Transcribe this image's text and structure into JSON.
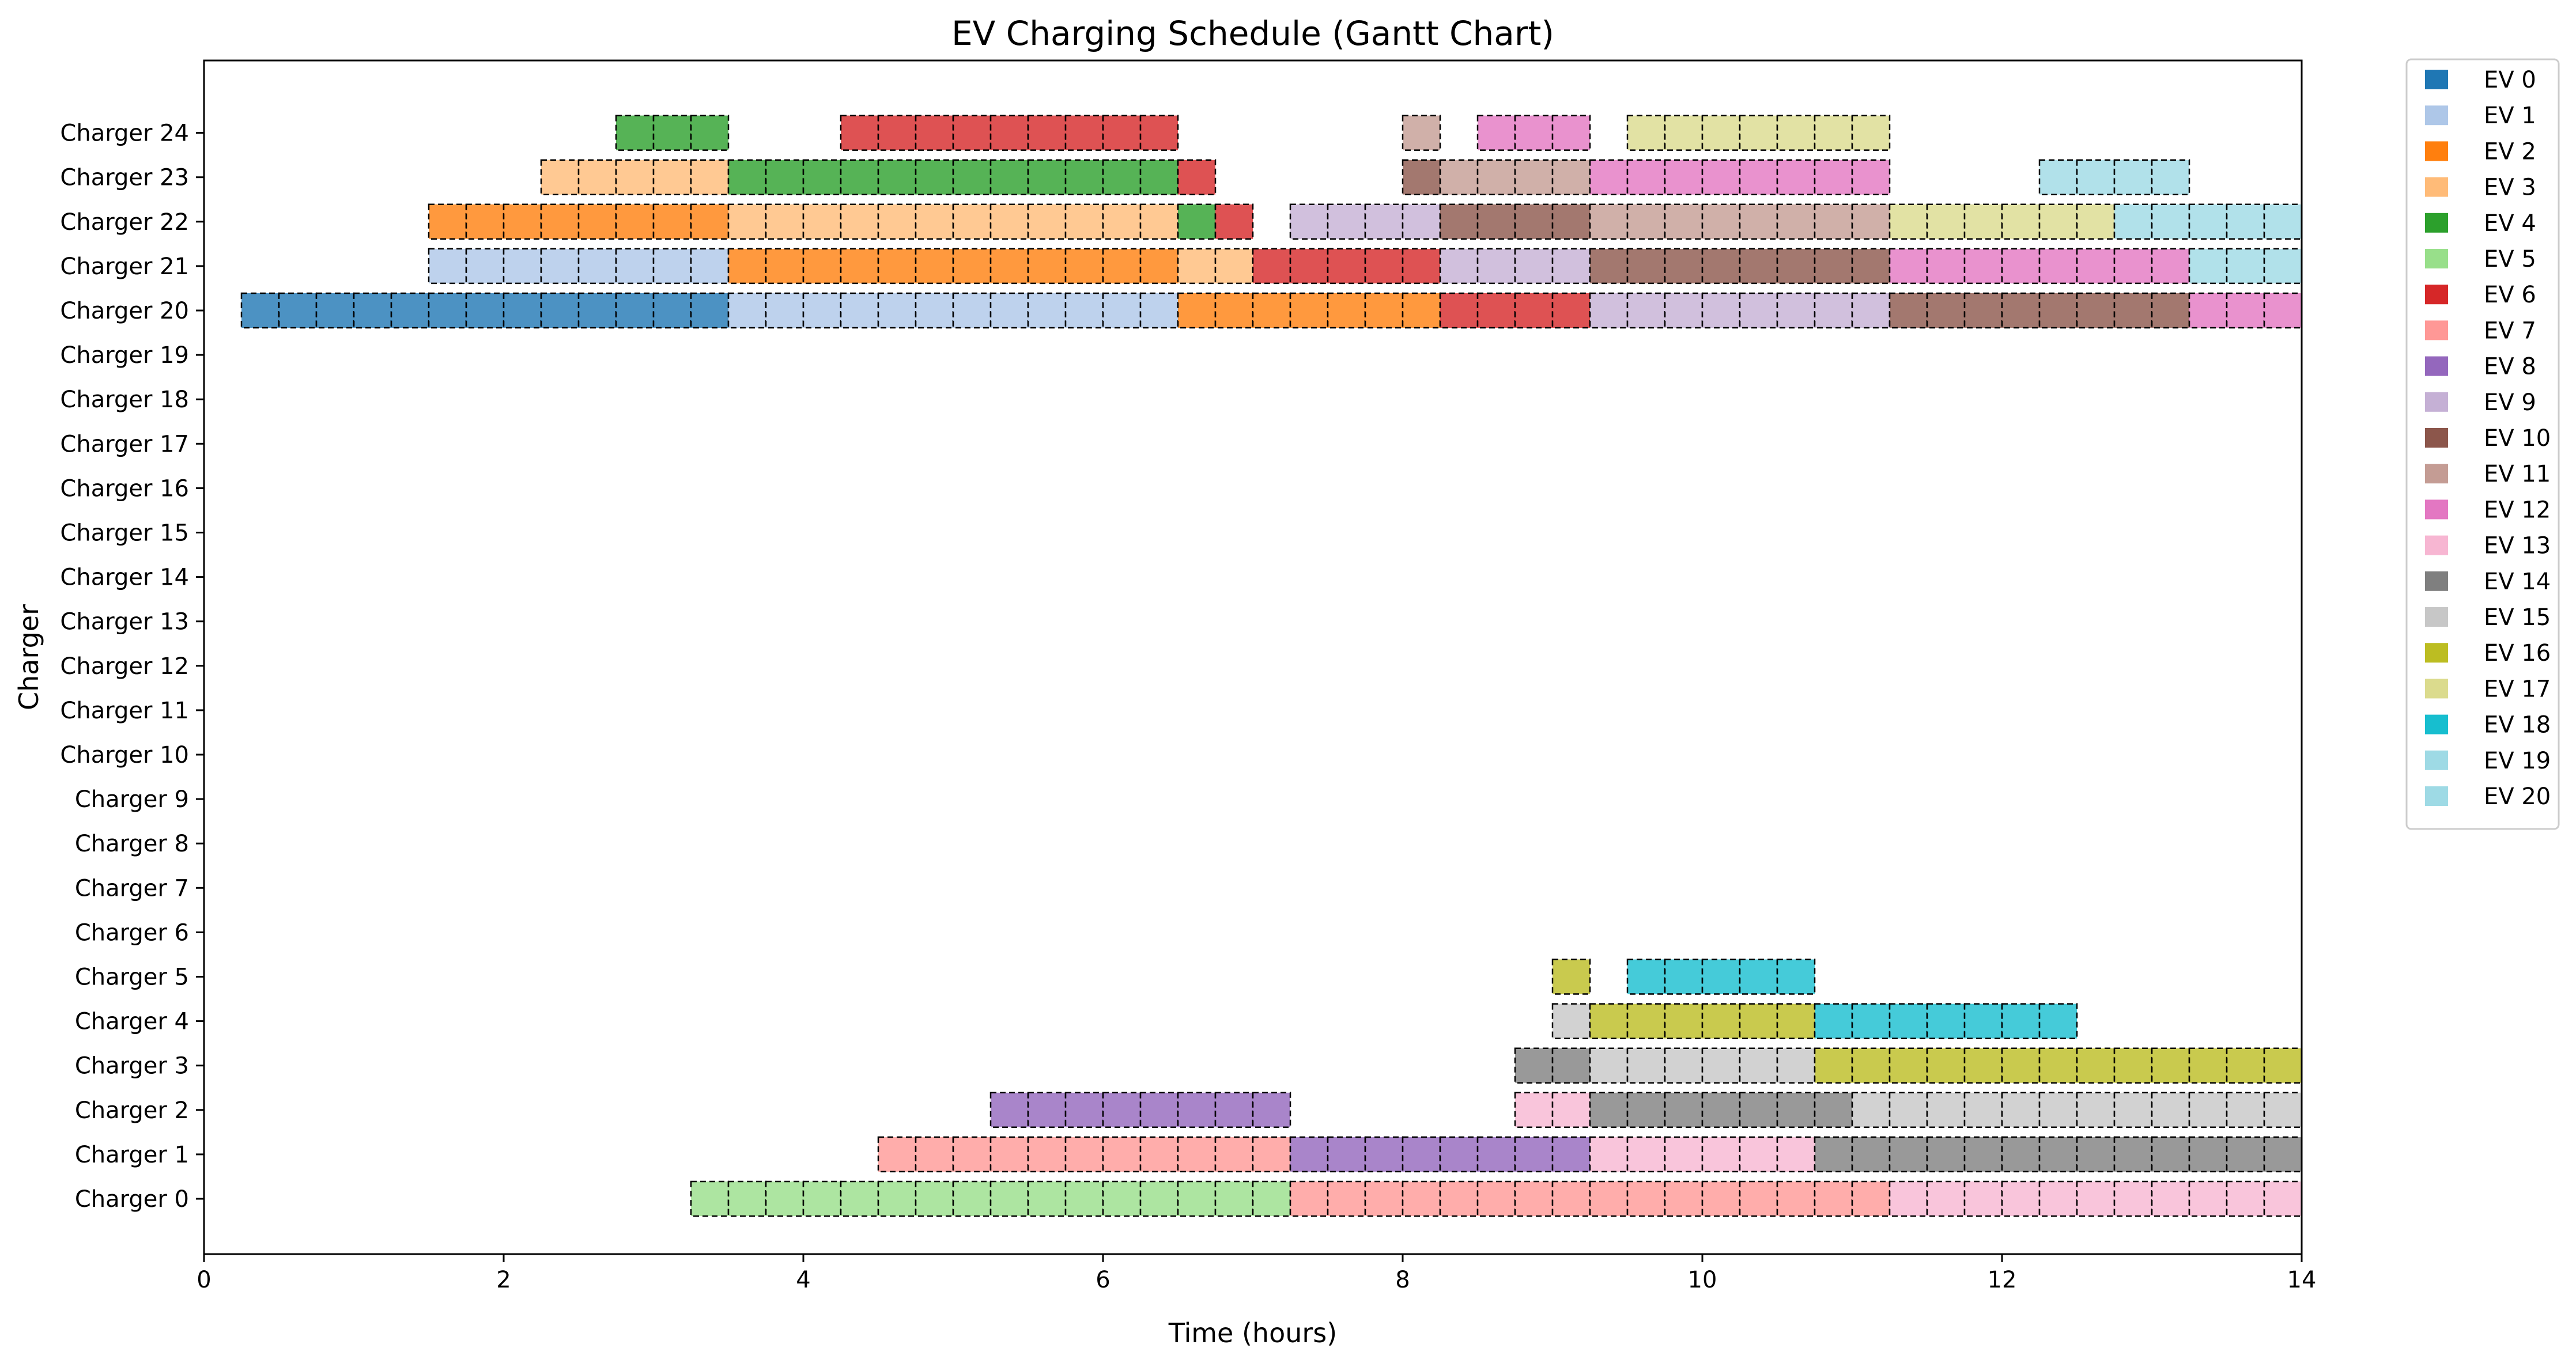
{
  "chart_data": {
    "type": "gantt",
    "title": "EV Charging Schedule (Gantt Chart)",
    "xlabel": "Time (hours)",
    "ylabel": "Charger",
    "xlim": [
      0,
      14
    ],
    "xticks": [
      "0",
      "2",
      "4",
      "6",
      "8",
      "10",
      "12",
      "14"
    ],
    "categories": [
      "Charger 0",
      "Charger 1",
      "Charger 2",
      "Charger 3",
      "Charger 4",
      "Charger 5",
      "Charger 6",
      "Charger 7",
      "Charger 8",
      "Charger 9",
      "Charger 10",
      "Charger 11",
      "Charger 12",
      "Charger 13",
      "Charger 14",
      "Charger 15",
      "Charger 16",
      "Charger 17",
      "Charger 18",
      "Charger 19",
      "Charger 20",
      "Charger 21",
      "Charger 22",
      "Charger 23",
      "Charger 24"
    ],
    "legend_position": "outside right",
    "legend": [
      {
        "label": "EV 0",
        "color": "#1f77b4"
      },
      {
        "label": "EV 1",
        "color": "#aec7e8"
      },
      {
        "label": "EV 2",
        "color": "#ff7f0e"
      },
      {
        "label": "EV 3",
        "color": "#ffbb78"
      },
      {
        "label": "EV 4",
        "color": "#2ca02c"
      },
      {
        "label": "EV 5",
        "color": "#98df8a"
      },
      {
        "label": "EV 6",
        "color": "#d62728"
      },
      {
        "label": "EV 7",
        "color": "#ff9896"
      },
      {
        "label": "EV 8",
        "color": "#9467bd"
      },
      {
        "label": "EV 9",
        "color": "#c5b0d5"
      },
      {
        "label": "EV 10",
        "color": "#8c564b"
      },
      {
        "label": "EV 11",
        "color": "#c49c94"
      },
      {
        "label": "EV 12",
        "color": "#e377c2"
      },
      {
        "label": "EV 13",
        "color": "#f7b6d2"
      },
      {
        "label": "EV 14",
        "color": "#7f7f7f"
      },
      {
        "label": "EV 15",
        "color": "#c7c7c7"
      },
      {
        "label": "EV 16",
        "color": "#bcbd22"
      },
      {
        "label": "EV 17",
        "color": "#dbdb8d"
      },
      {
        "label": "EV 18",
        "color": "#17becf"
      },
      {
        "label": "EV 19",
        "color": "#9edae5"
      },
      {
        "label": "EV 20",
        "color": "#9edae5"
      }
    ],
    "slot_hours": 0.25,
    "tasks": [
      {
        "charger": 0,
        "ev": 5,
        "start": 3.25,
        "end": 7.25
      },
      {
        "charger": 0,
        "ev": 7,
        "start": 7.25,
        "end": 11.25
      },
      {
        "charger": 0,
        "ev": 13,
        "start": 11.25,
        "end": 14.0
      },
      {
        "charger": 1,
        "ev": 7,
        "start": 4.5,
        "end": 7.25
      },
      {
        "charger": 1,
        "ev": 8,
        "start": 7.25,
        "end": 9.25
      },
      {
        "charger": 1,
        "ev": 13,
        "start": 9.25,
        "end": 10.75
      },
      {
        "charger": 1,
        "ev": 14,
        "start": 10.75,
        "end": 14.0
      },
      {
        "charger": 2,
        "ev": 8,
        "start": 5.25,
        "end": 7.25
      },
      {
        "charger": 2,
        "ev": 13,
        "start": 8.75,
        "end": 9.25
      },
      {
        "charger": 2,
        "ev": 14,
        "start": 9.25,
        "end": 11.0
      },
      {
        "charger": 2,
        "ev": 15,
        "start": 11.0,
        "end": 14.0
      },
      {
        "charger": 3,
        "ev": 14,
        "start": 8.75,
        "end": 9.25
      },
      {
        "charger": 3,
        "ev": 15,
        "start": 9.25,
        "end": 10.75
      },
      {
        "charger": 3,
        "ev": 16,
        "start": 10.75,
        "end": 14.0
      },
      {
        "charger": 4,
        "ev": 15,
        "start": 9.0,
        "end": 9.25
      },
      {
        "charger": 4,
        "ev": 16,
        "start": 9.25,
        "end": 10.75
      },
      {
        "charger": 4,
        "ev": 18,
        "start": 10.75,
        "end": 12.5
      },
      {
        "charger": 5,
        "ev": 16,
        "start": 9.0,
        "end": 9.25
      },
      {
        "charger": 5,
        "ev": 18,
        "start": 9.5,
        "end": 10.75
      },
      {
        "charger": 20,
        "ev": 0,
        "start": 0.25,
        "end": 3.5
      },
      {
        "charger": 20,
        "ev": 1,
        "start": 3.5,
        "end": 6.5
      },
      {
        "charger": 20,
        "ev": 2,
        "start": 6.5,
        "end": 8.25
      },
      {
        "charger": 20,
        "ev": 6,
        "start": 8.25,
        "end": 9.25
      },
      {
        "charger": 20,
        "ev": 9,
        "start": 9.25,
        "end": 11.25
      },
      {
        "charger": 20,
        "ev": 10,
        "start": 11.25,
        "end": 13.25
      },
      {
        "charger": 20,
        "ev": 12,
        "start": 13.25,
        "end": 14.0
      },
      {
        "charger": 21,
        "ev": 1,
        "start": 1.5,
        "end": 3.5
      },
      {
        "charger": 21,
        "ev": 2,
        "start": 3.5,
        "end": 6.5
      },
      {
        "charger": 21,
        "ev": 3,
        "start": 6.5,
        "end": 7.0
      },
      {
        "charger": 21,
        "ev": 6,
        "start": 7.0,
        "end": 8.25
      },
      {
        "charger": 21,
        "ev": 9,
        "start": 8.25,
        "end": 9.25
      },
      {
        "charger": 21,
        "ev": 10,
        "start": 9.25,
        "end": 11.25
      },
      {
        "charger": 21,
        "ev": 12,
        "start": 11.25,
        "end": 13.25
      },
      {
        "charger": 21,
        "ev": 19,
        "start": 13.25,
        "end": 14.0
      },
      {
        "charger": 22,
        "ev": 2,
        "start": 1.5,
        "end": 3.5
      },
      {
        "charger": 22,
        "ev": 3,
        "start": 3.5,
        "end": 6.5
      },
      {
        "charger": 22,
        "ev": 4,
        "start": 6.5,
        "end": 6.75
      },
      {
        "charger": 22,
        "ev": 6,
        "start": 6.75,
        "end": 7.0
      },
      {
        "charger": 22,
        "ev": 9,
        "start": 7.25,
        "end": 8.25
      },
      {
        "charger": 22,
        "ev": 10,
        "start": 8.25,
        "end": 9.25
      },
      {
        "charger": 22,
        "ev": 11,
        "start": 9.25,
        "end": 11.25
      },
      {
        "charger": 22,
        "ev": 17,
        "start": 11.25,
        "end": 12.75
      },
      {
        "charger": 22,
        "ev": 19,
        "start": 12.75,
        "end": 14.0
      },
      {
        "charger": 23,
        "ev": 3,
        "start": 2.25,
        "end": 3.5
      },
      {
        "charger": 23,
        "ev": 4,
        "start": 3.5,
        "end": 6.5
      },
      {
        "charger": 23,
        "ev": 6,
        "start": 6.5,
        "end": 6.75
      },
      {
        "charger": 23,
        "ev": 10,
        "start": 8.0,
        "end": 8.25
      },
      {
        "charger": 23,
        "ev": 11,
        "start": 8.25,
        "end": 9.25
      },
      {
        "charger": 23,
        "ev": 12,
        "start": 9.25,
        "end": 11.25
      },
      {
        "charger": 23,
        "ev": 19,
        "start": 12.25,
        "end": 13.25
      },
      {
        "charger": 24,
        "ev": 4,
        "start": 2.75,
        "end": 3.5
      },
      {
        "charger": 24,
        "ev": 6,
        "start": 4.25,
        "end": 6.5
      },
      {
        "charger": 24,
        "ev": 11,
        "start": 8.0,
        "end": 8.25
      },
      {
        "charger": 24,
        "ev": 12,
        "start": 8.5,
        "end": 9.25
      },
      {
        "charger": 24,
        "ev": 17,
        "start": 9.5,
        "end": 11.25
      }
    ]
  }
}
